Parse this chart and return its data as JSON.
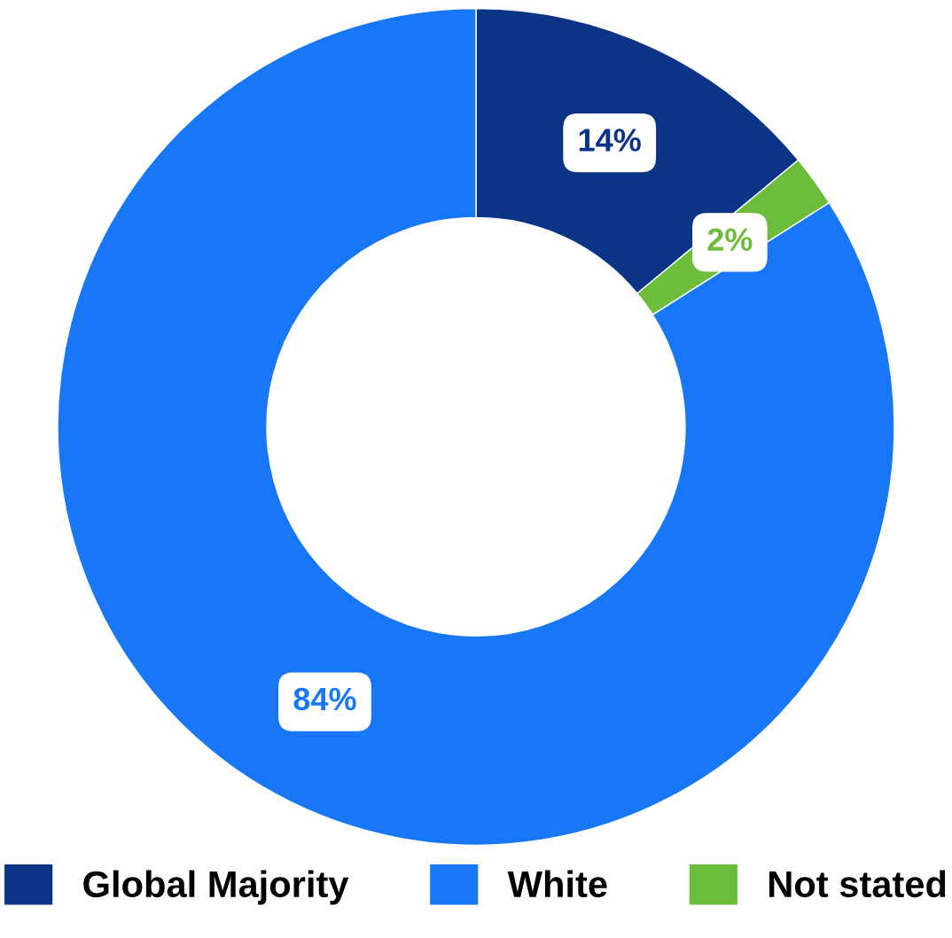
{
  "chart_data": {
    "type": "donut",
    "categories": [
      "Global Majority",
      "White",
      "Not stated"
    ],
    "values": [
      14,
      84,
      2
    ],
    "value_labels": [
      "14%",
      "84%",
      "2%"
    ],
    "colors": [
      "#0b3486",
      "#1877f7",
      "#6cbd3c"
    ],
    "legend": "bottom"
  }
}
